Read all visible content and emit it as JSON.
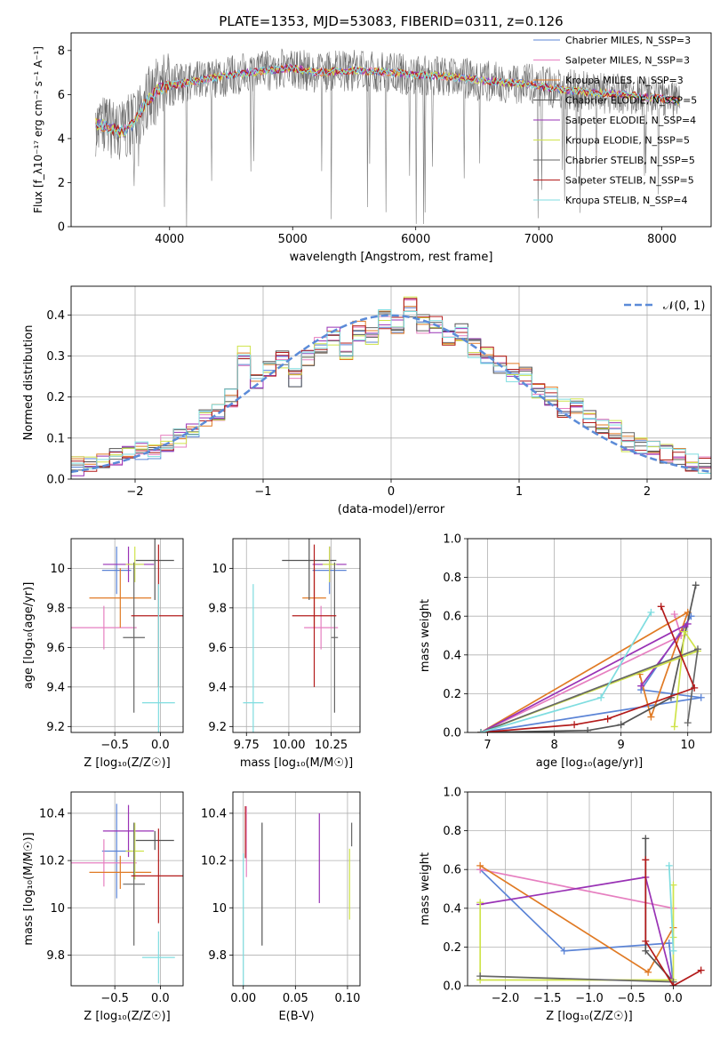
{
  "figure": {
    "title": "PLATE=1353, MJD=53083, FIBERID=0311, z=0.126"
  },
  "colors": {
    "blue": "#5b84d6",
    "pink": "#e67fc0",
    "orange": "#e07a24",
    "darkgray": "#555555",
    "purple": "#9932b5",
    "lime": "#cfe34a",
    "gray": "#666666",
    "red": "#b31b1b",
    "cyan": "#7fdde0",
    "normal": "#5b8bd8",
    "grid": "#b0b0b0"
  },
  "chart_data": [
    {
      "id": "spectrum",
      "type": "line",
      "xlabel": "wavelength [Angstrom, rest frame]",
      "ylabel": "Flux [f_λ10⁻¹⁷ erg cm⁻² s⁻¹ A⁻¹]",
      "xlim": [
        3200,
        8400
      ],
      "ylim": [
        0,
        8.8
      ],
      "xticks": [
        4000,
        5000,
        6000,
        7000,
        8000
      ],
      "yticks": [
        0,
        2,
        4,
        6,
        8
      ],
      "legend": "top-right",
      "series": [
        {
          "name": "Chabrier MILES, N_SSP=3",
          "color": "#5b84d6"
        },
        {
          "name": "Salpeter MILES, N_SSP=3",
          "color": "#e67fc0"
        },
        {
          "name": "Kroupa MILES, N_SSP=3",
          "color": "#e07a24"
        },
        {
          "name": "Chabrier ELODIE, N_SSP=5",
          "color": "#555555"
        },
        {
          "name": "Salpeter ELODIE, N_SSP=4",
          "color": "#9932b5"
        },
        {
          "name": "Kroupa ELODIE, N_SSP=5",
          "color": "#cfe34a"
        },
        {
          "name": "Chabrier STELIB, N_SSP=5",
          "color": "#666666"
        },
        {
          "name": "Salpeter STELIB, N_SSP=5",
          "color": "#b31b1b"
        },
        {
          "name": "Kroupa STELIB, N_SSP=4",
          "color": "#7fdde0"
        }
      ],
      "continuum": {
        "x": [
          3400,
          3500,
          3600,
          3700,
          3800,
          3900,
          4000,
          4200,
          4500,
          4800,
          5000,
          5200,
          5500,
          5800,
          6000,
          6300,
          6600,
          6900,
          7100,
          7400,
          7700,
          8000,
          8150
        ],
        "y": [
          4.7,
          4.5,
          4.3,
          4.6,
          5.6,
          6.2,
          6.4,
          6.6,
          6.9,
          7.1,
          7.2,
          7.0,
          7.1,
          7.0,
          6.9,
          6.8,
          6.6,
          6.5,
          6.3,
          6.1,
          6.0,
          5.8,
          5.7
        ]
      }
    },
    {
      "id": "residuals",
      "type": "bar",
      "xlabel": "(data-model)/error",
      "ylabel": "Normed distribution",
      "xlim": [
        -2.5,
        2.5
      ],
      "ylim": [
        0,
        0.47
      ],
      "xticks": [
        -2,
        -1,
        0,
        1,
        2
      ],
      "yticks": [
        0.0,
        0.1,
        0.2,
        0.3,
        0.4
      ],
      "legend": "top-right",
      "normal_label": "𝒩(0, 1)",
      "normal": {
        "mu": 0,
        "sigma": 1
      },
      "bin_centers": [
        -2.45,
        -2.35,
        -2.25,
        -2.15,
        -2.05,
        -1.95,
        -1.85,
        -1.75,
        -1.65,
        -1.55,
        -1.45,
        -1.35,
        -1.25,
        -1.15,
        -1.05,
        -0.95,
        -0.85,
        -0.75,
        -0.65,
        -0.55,
        -0.45,
        -0.35,
        -0.25,
        -0.15,
        -0.05,
        0.05,
        0.15,
        0.25,
        0.35,
        0.45,
        0.55,
        0.65,
        0.75,
        0.85,
        0.95,
        1.05,
        1.15,
        1.25,
        1.35,
        1.45,
        1.55,
        1.65,
        1.75,
        1.85,
        1.95,
        2.05,
        2.15,
        2.25,
        2.35,
        2.45
      ],
      "hist": [
        0.03,
        0.04,
        0.04,
        0.05,
        0.06,
        0.07,
        0.07,
        0.09,
        0.1,
        0.12,
        0.15,
        0.16,
        0.2,
        0.3,
        0.24,
        0.27,
        0.29,
        0.25,
        0.3,
        0.33,
        0.35,
        0.31,
        0.36,
        0.35,
        0.39,
        0.37,
        0.42,
        0.38,
        0.38,
        0.35,
        0.36,
        0.32,
        0.3,
        0.28,
        0.26,
        0.25,
        0.22,
        0.2,
        0.17,
        0.18,
        0.15,
        0.13,
        0.12,
        0.09,
        0.08,
        0.07,
        0.06,
        0.05,
        0.04,
        0.03
      ]
    },
    {
      "id": "age_vs_Z",
      "type": "scatter",
      "xlabel": "Z [log₁₀(Z/Z☉)]",
      "ylabel": "age  [log₁₀(age/yr)]",
      "xlim": [
        -0.98,
        0.25
      ],
      "ylim": [
        9.17,
        10.15
      ],
      "xticks": [
        -0.5,
        0.0
      ],
      "xticklabels": [
        "−0.5",
        "0.0"
      ],
      "yticks": [
        9.2,
        9.4,
        9.6,
        9.8,
        10.0
      ],
      "points": [
        {
          "color": "#5b84d6",
          "x": -0.48,
          "xerr": 0.16,
          "y": 9.99,
          "yerr": 0.12
        },
        {
          "color": "#e67fc0",
          "x": -0.62,
          "xerr": 0.36,
          "y": 9.7,
          "yerr": 0.11
        },
        {
          "color": "#e07a24",
          "x": -0.44,
          "xerr": 0.34,
          "y": 9.85,
          "yerr": 0.15
        },
        {
          "color": "#555555",
          "x": -0.06,
          "xerr": 0.21,
          "y": 10.04,
          "yerr": 0.2
        },
        {
          "color": "#9932b5",
          "x": -0.35,
          "xerr": 0.28,
          "y": 10.02,
          "yerr": 0.09
        },
        {
          "color": "#cfe34a",
          "x": -0.28,
          "xerr": 0.1,
          "y": 10.02,
          "yerr": 0.09
        },
        {
          "color": "#666666",
          "x": -0.29,
          "xerr": 0.12,
          "y": 9.65,
          "yerr": 0.38
        },
        {
          "color": "#b31b1b",
          "x": -0.02,
          "xerr": 0.3,
          "y": 9.76,
          "yerr": 0.36
        },
        {
          "color": "#7fdde0",
          "x": -0.02,
          "xerr": 0.18,
          "y": 9.32,
          "yerr": 0.6
        }
      ]
    },
    {
      "id": "age_vs_mass",
      "type": "scatter",
      "xlabel": "mass [log₁₀(M/M☉)]",
      "ylabel": "",
      "xlim": [
        9.67,
        10.42
      ],
      "ylim": [
        9.17,
        10.15
      ],
      "xticks": [
        9.75,
        10.0,
        10.25
      ],
      "xticklabels": [
        "9.75",
        "10.00",
        "10.25"
      ],
      "yticks": [
        9.2,
        9.4,
        9.6,
        9.8,
        10.0
      ],
      "points": [
        {
          "color": "#5b84d6",
          "x": 10.24,
          "xerr": 0.1,
          "y": 9.99,
          "yerr": 0.12
        },
        {
          "color": "#e67fc0",
          "x": 10.19,
          "xerr": 0.1,
          "y": 9.7,
          "yerr": 0.11
        },
        {
          "color": "#e07a24",
          "x": 10.15,
          "xerr": 0.07,
          "y": 9.85,
          "yerr": 0.15
        },
        {
          "color": "#555555",
          "x": 10.12,
          "xerr": 0.16,
          "y": 10.04,
          "yerr": 0.2
        },
        {
          "color": "#9932b5",
          "x": 10.24,
          "xerr": 0.1,
          "y": 10.02,
          "yerr": 0.09
        },
        {
          "color": "#cfe34a",
          "x": 10.24,
          "xerr": 0.04,
          "y": 10.02,
          "yerr": 0.09
        },
        {
          "color": "#666666",
          "x": 10.27,
          "xerr": 0.02,
          "y": 9.65,
          "yerr": 0.38
        },
        {
          "color": "#b31b1b",
          "x": 10.15,
          "xerr": 0.13,
          "y": 9.76,
          "yerr": 0.36
        },
        {
          "color": "#7fdde0",
          "x": 9.79,
          "xerr": 0.06,
          "y": 9.32,
          "yerr": 0.6
        }
      ]
    },
    {
      "id": "mass_weight_vs_age",
      "type": "line",
      "xlabel": "age  [log₁₀(age/yr)]",
      "ylabel": "mass weight",
      "xlim": [
        6.7,
        10.35
      ],
      "ylim": [
        0,
        1.0
      ],
      "xticks": [
        7,
        8,
        9,
        10
      ],
      "yticks": [
        0.0,
        0.2,
        0.4,
        0.6,
        0.8,
        1.0
      ],
      "series": [
        {
          "color": "#5b84d6",
          "x": [
            10.05,
            9.3,
            10.2,
            6.9
          ],
          "y": [
            0.6,
            0.22,
            0.18,
            0.0
          ]
        },
        {
          "color": "#e67fc0",
          "x": [
            9.8,
            9.9,
            6.9
          ],
          "y": [
            0.61,
            0.5,
            0.0
          ]
        },
        {
          "color": "#e07a24",
          "x": [
            9.28,
            9.45,
            10.0,
            6.9
          ],
          "y": [
            0.3,
            0.08,
            0.62,
            0.0
          ]
        },
        {
          "color": "#555555",
          "x": [
            10.12,
            9.75,
            9.0,
            8.5,
            6.9
          ],
          "y": [
            0.76,
            0.18,
            0.04,
            0.01,
            0.0
          ]
        },
        {
          "color": "#9932b5",
          "x": [
            9.3,
            10.0,
            6.9
          ],
          "y": [
            0.24,
            0.56,
            0.0
          ]
        },
        {
          "color": "#cfe34a",
          "x": [
            9.8,
            9.95,
            10.15,
            6.9
          ],
          "y": [
            0.03,
            0.52,
            0.42,
            0.0
          ]
        },
        {
          "color": "#666666",
          "x": [
            10.0,
            10.15,
            6.9
          ],
          "y": [
            0.05,
            0.43,
            0.0
          ]
        },
        {
          "color": "#b31b1b",
          "x": [
            9.6,
            10.1,
            8.8,
            8.3,
            6.9
          ],
          "y": [
            0.65,
            0.23,
            0.07,
            0.04,
            0.0
          ]
        },
        {
          "color": "#7fdde0",
          "x": [
            9.45,
            8.7,
            6.9
          ],
          "y": [
            0.62,
            0.18,
            0.0
          ]
        }
      ]
    },
    {
      "id": "mass_vs_Z",
      "type": "scatter",
      "xlabel": "Z [log₁₀(Z/Z☉)]",
      "ylabel": "mass [log₁₀(M/M☉)]",
      "xlim": [
        -0.98,
        0.25
      ],
      "ylim": [
        9.67,
        10.49
      ],
      "xticks": [
        -0.5,
        0.0
      ],
      "xticklabels": [
        "−0.5",
        "0.0"
      ],
      "yticks": [
        9.8,
        10.0,
        10.2,
        10.4
      ],
      "points": [
        {
          "color": "#5b84d6",
          "x": -0.48,
          "xerr": 0.16,
          "y": 10.24,
          "yerr": 0.2
        },
        {
          "color": "#e67fc0",
          "x": -0.62,
          "xerr": 0.36,
          "y": 10.19,
          "yerr": 0.1
        },
        {
          "color": "#e07a24",
          "x": -0.44,
          "xerr": 0.34,
          "y": 10.15,
          "yerr": 0.07
        },
        {
          "color": "#555555",
          "x": -0.06,
          "xerr": 0.21,
          "y": 10.285,
          "yerr": 0.04
        },
        {
          "color": "#9932b5",
          "x": -0.35,
          "xerr": 0.28,
          "y": 10.325,
          "yerr": 0.11
        },
        {
          "color": "#cfe34a",
          "x": -0.28,
          "xerr": 0.1,
          "y": 10.24,
          "yerr": 0.12
        },
        {
          "color": "#666666",
          "x": -0.29,
          "xerr": 0.12,
          "y": 10.1,
          "yerr": 0.26
        },
        {
          "color": "#b31b1b",
          "x": -0.02,
          "xerr": 0.3,
          "y": 10.135,
          "yerr": 0.2
        },
        {
          "color": "#7fdde0",
          "x": -0.02,
          "xerr": 0.18,
          "y": 9.79,
          "yerr": 0.11
        }
      ]
    },
    {
      "id": "mass_vs_EBV",
      "type": "scatter",
      "xlabel": "E(B-V)",
      "ylabel": "",
      "xlim": [
        -0.01,
        0.112
      ],
      "ylim": [
        9.67,
        10.49
      ],
      "xticks": [
        0.0,
        0.05,
        0.1
      ],
      "xticklabels": [
        "0.00",
        "0.05",
        "0.10"
      ],
      "yticks": [
        9.8,
        10.0,
        10.2,
        10.4
      ],
      "points": [
        {
          "color": "#e67fc0",
          "x": 0.003,
          "y": 10.28,
          "yerr": 0.15
        },
        {
          "color": "#b31b1b",
          "x": 0.002,
          "y": 10.32,
          "yerr": 0.11
        },
        {
          "color": "#7fdde0",
          "x": 0.0,
          "y": 9.95,
          "yerr": 0.28
        },
        {
          "color": "#555555",
          "x": 0.018,
          "y": 10.1,
          "yerr": 0.26
        },
        {
          "color": "#9932b5",
          "x": 0.073,
          "y": 10.21,
          "yerr": 0.19
        },
        {
          "color": "#cfe34a",
          "x": 0.102,
          "y": 10.1,
          "yerr": 0.15
        },
        {
          "color": "#666666",
          "x": 0.104,
          "y": 10.31,
          "yerr": 0.05
        }
      ]
    },
    {
      "id": "mass_weight_vs_Z",
      "type": "line",
      "xlabel": "Z [log₁₀(Z/Z☉)]",
      "ylabel": "mass weight",
      "xlim": [
        -2.45,
        0.45
      ],
      "ylim": [
        0,
        1.0
      ],
      "xticks": [
        -2.0,
        -1.5,
        -1.0,
        -0.5,
        0.0
      ],
      "xticklabels": [
        "−2.0",
        "−1.5",
        "−1.0",
        "−0.5",
        "0.0"
      ],
      "yticks": [
        0.0,
        0.2,
        0.4,
        0.6,
        0.8,
        1.0
      ],
      "series": [
        {
          "color": "#5b84d6",
          "x": [
            -2.3,
            -1.3,
            -0.05,
            0.0
          ],
          "y": [
            0.6,
            0.18,
            0.22,
            0.0
          ]
        },
        {
          "color": "#e67fc0",
          "x": [
            -2.3,
            0.0
          ],
          "y": [
            0.6,
            0.4
          ]
        },
        {
          "color": "#e07a24",
          "x": [
            -2.3,
            -0.3,
            0.0
          ],
          "y": [
            0.62,
            0.07,
            0.3
          ]
        },
        {
          "color": "#555555",
          "x": [
            -0.33,
            -0.33,
            0.0
          ],
          "y": [
            0.76,
            0.18,
            0.02
          ]
        },
        {
          "color": "#9932b5",
          "x": [
            -2.3,
            -0.33,
            0.0
          ],
          "y": [
            0.42,
            0.56,
            0.0
          ]
        },
        {
          "color": "#cfe34a",
          "x": [
            -2.3,
            -2.3,
            0.0,
            0.0,
            0.0
          ],
          "y": [
            0.43,
            0.03,
            0.03,
            0.52,
            0.25
          ]
        },
        {
          "color": "#666666",
          "x": [
            -2.3,
            0.0
          ],
          "y": [
            0.05,
            0.02
          ]
        },
        {
          "color": "#b31b1b",
          "x": [
            -0.33,
            -0.33,
            0.0,
            0.33
          ],
          "y": [
            0.65,
            0.23,
            0.0,
            0.08
          ]
        },
        {
          "color": "#7fdde0",
          "x": [
            -0.05,
            0.0
          ],
          "y": [
            0.62,
            0.18
          ]
        }
      ]
    }
  ]
}
